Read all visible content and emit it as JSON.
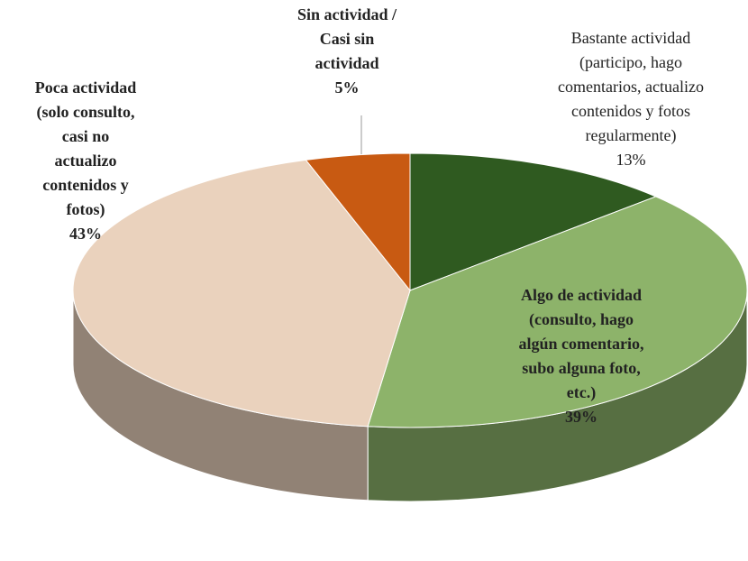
{
  "chart_data": {
    "type": "pie",
    "categories": [
      "Bastante actividad\n(participo, hago\ncomentarios, actualizo\ncontenidos y fotos\nregularmente)",
      "Algo de actividad\n(consulto, hago\nalgún comentario,\nsubo alguna foto,\netc.)",
      "Poca actividad\n(solo consulto,\ncasi no\nactualizo\ncontenidos y\nfotos)",
      "Sin actividad /\nCasi sin\nactividad"
    ],
    "values": [
      13,
      39,
      43,
      5
    ],
    "value_labels": [
      "13%",
      "39%",
      "43%",
      "5%"
    ],
    "colors": [
      "#2f5a20",
      "#8db36a",
      "#ead2bd",
      "#c85a12"
    ]
  }
}
